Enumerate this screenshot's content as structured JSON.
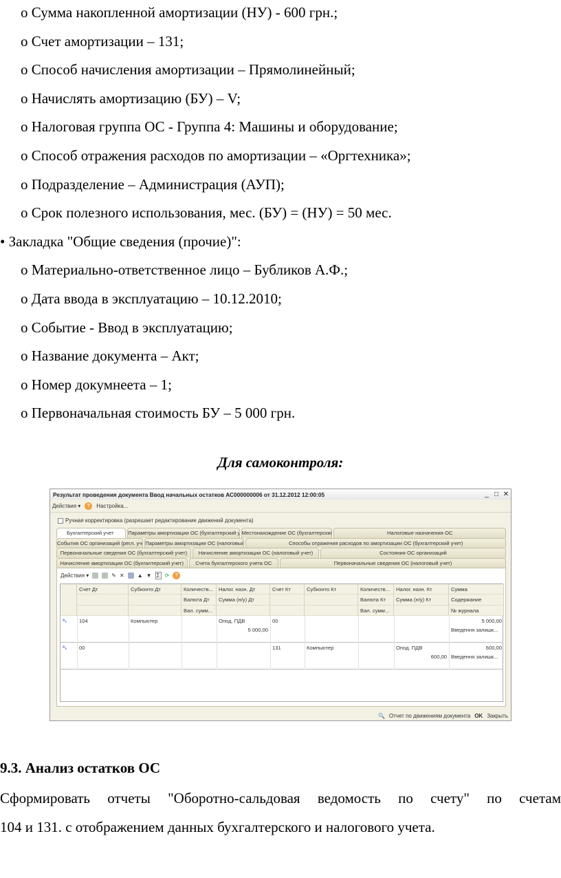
{
  "lines": [
    "о Сумма накопленной амортизации (НУ) - 600 грн.;",
    "о Счет амортизации – 131;",
    "о Способ начисления амортизации – Прямолинейный;",
    "о Начислять амортизацию (БУ) – V;",
    "о Налоговая группа ОС - Группа 4: Машины и оборудование;",
    "о Способ отражения расходов по амортизации – «Оргтехника»;",
    "о Подразделение – Администрация (АУП);",
    "о Срок полезного использования, мес. (БУ) = (НУ) = 50 мес.",
    "• Закладка \"Общие сведения (прочие)\":",
    "о Материально-ответственное лицо – Бубликов А.Ф.;",
    "о Дата ввода в эксплуатацию – 10.12.2010;",
    "о Событие - Ввод в эксплуатацию;",
    "о Название документа – Акт;",
    "о Номер докумнеета – 1;",
    "о Первоначальная стоимость БУ – 5 000 грн."
  ],
  "heading": "Для самоконтроля:",
  "window": {
    "title": "Результат проведения документа Ввод начальных остатков АС000000006 от 31.12.2012 12:00:05",
    "actions": "Действия ▾",
    "settings": "Настройка...",
    "manual": "Ручная корректировка (разрешает редактирование движений документа)",
    "tabs": [
      [
        "Бухгалтерский учет",
        "Параметры амортизации ОС (бухгалтерский учет)",
        "Местонахождение ОС (бухгалтерский учет)",
        "Налоговые назначения ОС"
      ],
      [
        "События ОС организаций (регл. учет)",
        "Параметры амортизации ОС (налоговый учет)",
        "Способы отражения расходов по амортизации ОС (бухгалтерский учет)"
      ],
      [
        "Первоначальные сведения ОС (бухгалтерский учет)",
        "Начисление амортизации ОС (налоговый учет)",
        "Состояния ОС организаций"
      ],
      [
        "Начисление амортизации ОС (бухгалтерский учет)",
        "Счета бухгалтерского учета ОС",
        "Первоначальные сведения ОС (налоговый учет)"
      ]
    ],
    "inner_actions": "Действия ▾",
    "columns": [
      [
        "Счет Дт",
        "",
        ""
      ],
      [
        "Субконто Дт",
        "",
        ""
      ],
      [
        "Количеств...",
        "Валюта Дт",
        "Вал. сумм..."
      ],
      [
        "Налог. назн. Дт",
        "Сумма (н/у) Дт",
        ""
      ],
      [
        "Счет Кт",
        "",
        ""
      ],
      [
        "Субконто Кт",
        "",
        ""
      ],
      [
        "Количеств...",
        "Валюта Кт",
        "Вал. сумм..."
      ],
      [
        "Налог. назн. Кт",
        "Сумма (н/у) Кт",
        ""
      ],
      [
        "Сумма",
        "Содержание",
        "№ журнала"
      ]
    ],
    "rows": [
      [
        [
          "104"
        ],
        [
          "Компьютер"
        ],
        [
          ""
        ],
        [
          "Опод. ПДВ",
          "5 000,00"
        ],
        [
          "00"
        ],
        [
          ""
        ],
        [
          ""
        ],
        [
          ""
        ],
        [
          "5 000,00",
          "Введення залишк..."
        ]
      ],
      [
        [
          "00"
        ],
        [
          ""
        ],
        [
          ""
        ],
        [
          ""
        ],
        [
          "131"
        ],
        [
          "Компьютер"
        ],
        [
          ""
        ],
        [
          "Опод. ПДВ",
          "600,00"
        ],
        [
          "600,00",
          "Введення залишк..."
        ]
      ]
    ],
    "report": "Отчет по движениям документа",
    "ok": "OK",
    "close": "Закрыть"
  },
  "section": "9.3. Анализ остатков ОС",
  "para": [
    "Сформировать отчеты \"Оборотно-сальдовая ведомость по счету\" по счетам",
    "104 и 131. с отображением данных бухгалтерского и налогового учета."
  ]
}
